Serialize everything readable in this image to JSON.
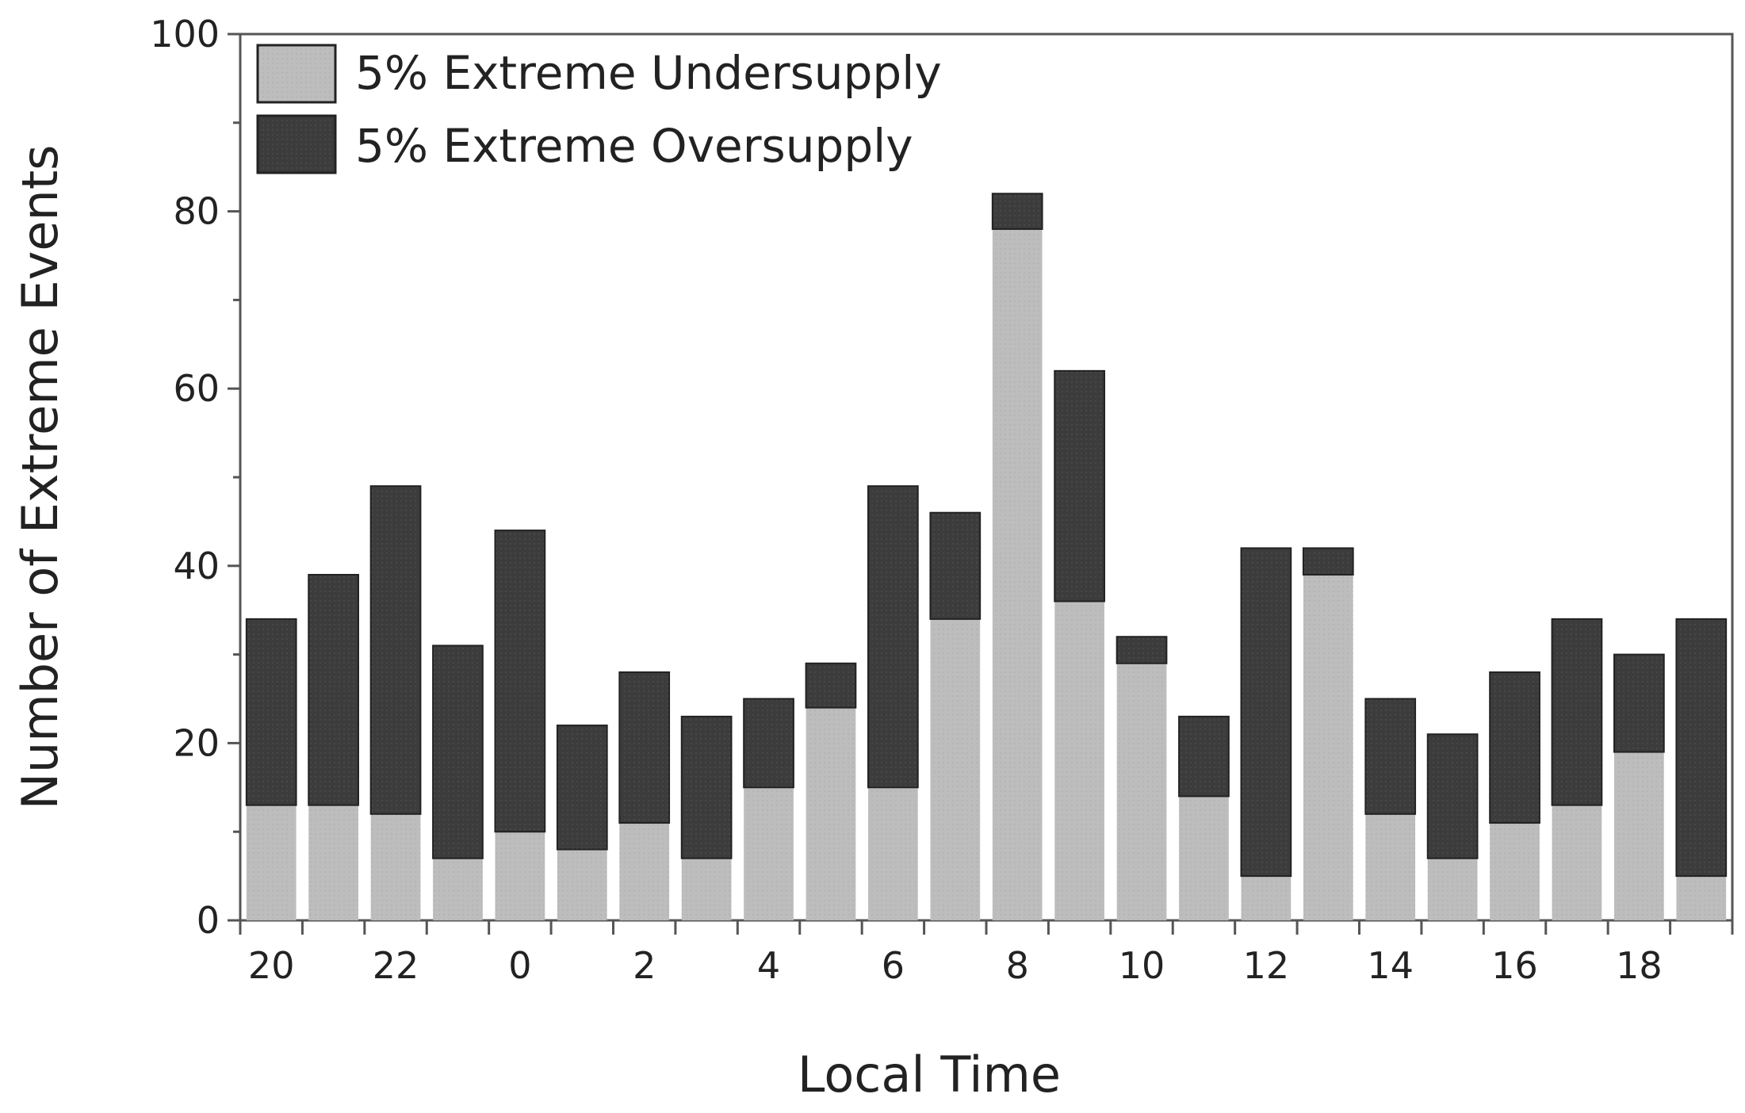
{
  "chart_data": {
    "type": "bar",
    "stacked": true,
    "xlabel": "Local Time",
    "ylabel": "Number of Extreme Events",
    "ylim": [
      0,
      100
    ],
    "yticks": [
      0,
      20,
      40,
      60,
      80,
      100
    ],
    "grid": false,
    "legend_position": "top-left",
    "categories": [
      20,
      21,
      22,
      23,
      0,
      1,
      2,
      3,
      4,
      5,
      6,
      7,
      8,
      9,
      10,
      11,
      12,
      13,
      14,
      15,
      16,
      17,
      18,
      19
    ],
    "x_tick_labels": [
      "20",
      "22",
      "0",
      "2",
      "4",
      "6",
      "8",
      "10",
      "12",
      "14",
      "16",
      "18"
    ],
    "series": [
      {
        "name": "5% Extreme Undersupply",
        "color": "#bdbdbd",
        "values": [
          13,
          13,
          12,
          7,
          10,
          8,
          11,
          7,
          15,
          24,
          15,
          34,
          78,
          36,
          29,
          14,
          5,
          39,
          12,
          7,
          11,
          13,
          19,
          5
        ]
      },
      {
        "name": "5% Extreme Oversupply",
        "color": "#3c3c3c",
        "values": [
          21,
          26,
          37,
          24,
          34,
          14,
          17,
          16,
          10,
          5,
          34,
          12,
          4,
          26,
          3,
          9,
          37,
          3,
          13,
          14,
          17,
          21,
          11,
          29
        ]
      }
    ]
  }
}
